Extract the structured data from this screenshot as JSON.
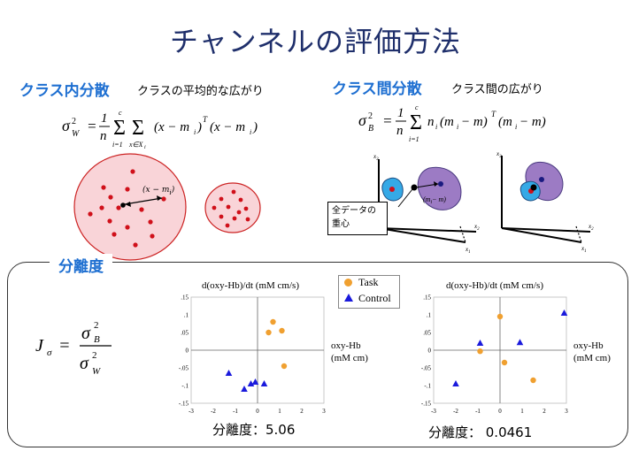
{
  "title": "チャンネルの評価方法",
  "within": {
    "heading": "クラス内分散",
    "subtitle": "クラスの平均的な広がり"
  },
  "between": {
    "heading": "クラス間分散",
    "subtitle": "クラス間の広がり"
  },
  "mean_vector_label": "(x − m",
  "mean_vector_sub": "i",
  "class_diff_label": "(m",
  "class_diff_sub": "i",
  "class_diff_tail": "− m)",
  "overall_centroid": {
    "line1": "全データの",
    "line2": "重心"
  },
  "axis_labels": {
    "x": "x",
    "sub1": "1",
    "sub2": "2",
    "sub3": "3"
  },
  "separation": {
    "heading": "分離度"
  },
  "legend": {
    "task": "Task",
    "control": "Control"
  },
  "colors": {
    "task": "#f0a030",
    "control": "#1a1adc",
    "accent": "#1e6fd1",
    "red": "#d0101a"
  },
  "chart_data": [
    {
      "type": "scatter",
      "title": "d(oxy-Hb)/dt (mM cm/s)",
      "xlabel": "oxy-Hb (mM cm)",
      "xlim": [
        -3,
        3
      ],
      "ylim": [
        -0.15,
        0.15
      ],
      "xticks": [
        -3,
        -2,
        -1,
        0,
        1,
        2,
        3
      ],
      "yticks": [
        -0.15,
        -0.1,
        -0.05,
        0,
        0.05,
        0.1,
        0.15
      ],
      "series": [
        {
          "name": "Task",
          "points": [
            [
              0.7,
              0.08
            ],
            [
              0.5,
              0.05
            ],
            [
              1.1,
              0.055
            ],
            [
              1.2,
              -0.045
            ]
          ]
        },
        {
          "name": "Control",
          "points": [
            [
              -1.3,
              -0.065
            ],
            [
              -0.1,
              -0.09
            ],
            [
              -0.3,
              -0.095
            ],
            [
              0.3,
              -0.095
            ],
            [
              -0.6,
              -0.11
            ]
          ]
        }
      ],
      "caption": "分離度：5.06"
    },
    {
      "type": "scatter",
      "title": "d(oxy-Hb)/dt (mM cm/s)",
      "xlabel": "oxy-Hb (mM cm)",
      "xlim": [
        -3,
        3
      ],
      "ylim": [
        -0.15,
        0.15
      ],
      "xticks": [
        -3,
        -2,
        -1,
        0,
        1,
        2,
        3
      ],
      "yticks": [
        -0.15,
        -0.1,
        -0.05,
        0,
        0.05,
        0.1,
        0.15
      ],
      "series": [
        {
          "name": "Task",
          "points": [
            [
              0,
              0.095
            ],
            [
              -0.9,
              -0.003
            ],
            [
              0.2,
              -0.035
            ],
            [
              1.5,
              -0.085
            ]
          ]
        },
        {
          "name": "Control",
          "points": [
            [
              -0.9,
              0.02
            ],
            [
              0.9,
              0.022
            ],
            [
              2.9,
              0.105
            ],
            [
              -2,
              -0.095
            ]
          ]
        }
      ],
      "caption": "分離度： 0.0461"
    }
  ]
}
